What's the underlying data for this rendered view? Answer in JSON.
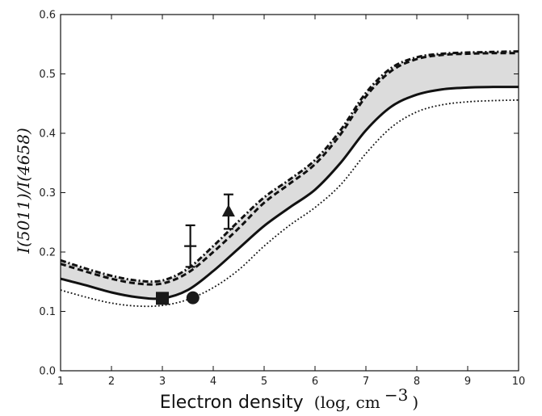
{
  "chart_data": {
    "type": "line",
    "xlabel_main": "Electron density",
    "xlabel_unit_pre": "(log, cm",
    "xlabel_unit_sup": "−3",
    "xlabel_unit_post": ")",
    "ylabel": "I(5011)/I(4658)",
    "xlim": [
      1,
      10
    ],
    "ylim": [
      0.0,
      0.6
    ],
    "xticks": [
      1,
      2,
      3,
      4,
      5,
      6,
      7,
      8,
      9,
      10
    ],
    "yticks": [
      0.0,
      0.1,
      0.2,
      0.3,
      0.4,
      0.5,
      0.6
    ],
    "ytick_labels": [
      "0.0",
      "0.1",
      "0.2",
      "0.3",
      "0.4",
      "0.5",
      "0.6"
    ],
    "grid": false,
    "colors": {
      "band": "#dcdcdc",
      "line": "#111111"
    },
    "series": [
      {
        "style": "band-upper-dashdot",
        "x": [
          1,
          1.5,
          2,
          2.5,
          3,
          3.5,
          4,
          4.5,
          5,
          5.5,
          6,
          6.5,
          7,
          7.5,
          8,
          8.5,
          9,
          9.5,
          10
        ],
        "y": [
          0.186,
          0.172,
          0.16,
          0.152,
          0.152,
          0.172,
          0.21,
          0.252,
          0.292,
          0.322,
          0.355,
          0.405,
          0.468,
          0.51,
          0.528,
          0.534,
          0.536,
          0.537,
          0.538
        ]
      },
      {
        "style": "dashed",
        "x": [
          1,
          1.5,
          2,
          2.5,
          3,
          3.5,
          4,
          4.5,
          5,
          5.5,
          6,
          6.5,
          7,
          7.5,
          8,
          8.5,
          9,
          9.5,
          10
        ],
        "y": [
          0.18,
          0.167,
          0.155,
          0.147,
          0.147,
          0.165,
          0.2,
          0.24,
          0.283,
          0.315,
          0.348,
          0.398,
          0.462,
          0.505,
          0.525,
          0.532,
          0.534,
          0.535,
          0.535
        ]
      },
      {
        "style": "band-lower-solid",
        "x": [
          1,
          1.5,
          2,
          2.5,
          3,
          3.5,
          4,
          4.5,
          5,
          5.5,
          6,
          6.5,
          7,
          7.5,
          8,
          8.5,
          9,
          9.5,
          10
        ],
        "y": [
          0.155,
          0.144,
          0.132,
          0.124,
          0.122,
          0.136,
          0.168,
          0.206,
          0.244,
          0.275,
          0.305,
          0.35,
          0.405,
          0.445,
          0.465,
          0.474,
          0.477,
          0.478,
          0.478
        ]
      },
      {
        "style": "dotted",
        "x": [
          1,
          1.5,
          2,
          2.5,
          3,
          3.5,
          4,
          4.5,
          5,
          5.5,
          6,
          6.5,
          7,
          7.5,
          8,
          8.5,
          9,
          9.5,
          10
        ],
        "y": [
          0.136,
          0.124,
          0.114,
          0.109,
          0.11,
          0.12,
          0.14,
          0.17,
          0.21,
          0.245,
          0.275,
          0.313,
          0.366,
          0.41,
          0.436,
          0.448,
          0.453,
          0.455,
          0.456
        ]
      }
    ],
    "points": [
      {
        "marker": "cross",
        "x": 3.55,
        "y": 0.21,
        "yerr": 0.035,
        "xerr": 0.12
      },
      {
        "marker": "triangle",
        "x": 4.3,
        "y": 0.268,
        "yerr": 0.029
      },
      {
        "marker": "square",
        "x": 3.0,
        "y": 0.122
      },
      {
        "marker": "circle",
        "x": 3.6,
        "y": 0.123
      }
    ]
  }
}
